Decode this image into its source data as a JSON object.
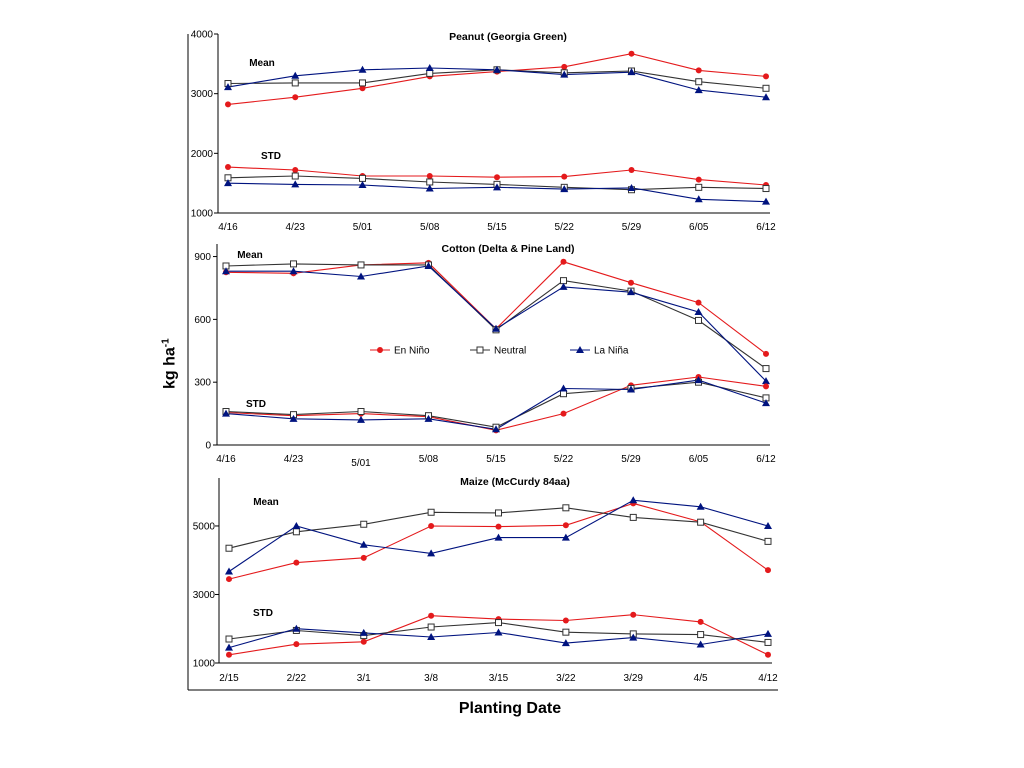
{
  "figure": {
    "ylabel": "kg ha",
    "ylabel_sup": "-1",
    "xlabel": "Planting Date"
  },
  "legend": [
    {
      "name": "En Niño",
      "color": "#e41a1c",
      "marker": "circle"
    },
    {
      "name": "Neutral",
      "color": "#333333",
      "marker": "square"
    },
    {
      "name": "La Niña",
      "color": "#00137f",
      "marker": "triangle"
    }
  ],
  "chart_data": [
    {
      "type": "line",
      "title": "Peanut (Georgia Green)",
      "categories": [
        "4/16",
        "4/23",
        "5/01",
        "5/08",
        "5/15",
        "5/22",
        "5/29",
        "6/05",
        "6/12"
      ],
      "ylim": [
        1000,
        4000
      ],
      "yticks": [
        "1000",
        "2000",
        "3000",
        "4000"
      ],
      "group_labels": [
        "Mean",
        "STD"
      ],
      "series": [
        {
          "name": "En Niño",
          "group": "Mean",
          "values": [
            2820,
            2940,
            3090,
            3290,
            3370,
            3450,
            3670,
            3390,
            3290
          ]
        },
        {
          "name": "Neutral",
          "group": "Mean",
          "values": [
            3170,
            3180,
            3180,
            3340,
            3400,
            3350,
            3380,
            3200,
            3090
          ]
        },
        {
          "name": "La Niña",
          "group": "Mean",
          "values": [
            3110,
            3300,
            3400,
            3430,
            3400,
            3320,
            3360,
            3060,
            2940
          ]
        },
        {
          "name": "En Niño",
          "group": "STD",
          "values": [
            1770,
            1720,
            1620,
            1620,
            1600,
            1610,
            1720,
            1560,
            1470
          ]
        },
        {
          "name": "Neutral",
          "group": "STD",
          "values": [
            1590,
            1620,
            1580,
            1520,
            1480,
            1430,
            1390,
            1430,
            1410
          ]
        },
        {
          "name": "La Niña",
          "group": "STD",
          "values": [
            1500,
            1480,
            1470,
            1410,
            1430,
            1400,
            1420,
            1230,
            1190
          ]
        }
      ]
    },
    {
      "type": "line",
      "title": "Cotton (Delta & Pine Land)",
      "categories": [
        "4/16",
        "4/23",
        "5/01",
        "5/08",
        "5/15",
        "5/22",
        "5/29",
        "6/05",
        "6/12"
      ],
      "ylim": [
        0,
        960
      ],
      "yticks": [
        "0",
        "300",
        "600",
        "900"
      ],
      "group_labels": [
        "Mean",
        "STD"
      ],
      "series": [
        {
          "name": "En Niño",
          "group": "Mean",
          "values": [
            825,
            820,
            860,
            870,
            555,
            875,
            775,
            680,
            435
          ]
        },
        {
          "name": "Neutral",
          "group": "Mean",
          "values": [
            855,
            865,
            860,
            860,
            550,
            785,
            735,
            595,
            365
          ]
        },
        {
          "name": "La Niña",
          "group": "Mean",
          "values": [
            830,
            830,
            805,
            855,
            555,
            755,
            730,
            635,
            305
          ]
        },
        {
          "name": "En Niño",
          "group": "STD",
          "values": [
            155,
            140,
            150,
            135,
            70,
            150,
            285,
            325,
            280
          ]
        },
        {
          "name": "Neutral",
          "group": "STD",
          "values": [
            160,
            145,
            160,
            140,
            85,
            245,
            270,
            300,
            225
          ]
        },
        {
          "name": "La Niña",
          "group": "STD",
          "values": [
            150,
            125,
            120,
            125,
            75,
            270,
            265,
            310,
            200
          ]
        }
      ]
    },
    {
      "type": "line",
      "title": "Maize (McCurdy 84aa)",
      "categories": [
        "2/15",
        "2/22",
        "3/1",
        "3/8",
        "3/15",
        "3/22",
        "3/29",
        "4/5",
        "4/12"
      ],
      "ylim": [
        1000,
        6400
      ],
      "yticks": [
        "1000",
        "3000",
        "5000"
      ],
      "group_labels": [
        "Mean",
        "STD"
      ],
      "series": [
        {
          "name": "En Niño",
          "group": "Mean",
          "values": [
            3450,
            3930,
            4070,
            5000,
            4980,
            5020,
            5660,
            5120,
            3710
          ]
        },
        {
          "name": "Neutral",
          "group": "Mean",
          "values": [
            4350,
            4830,
            5050,
            5400,
            5380,
            5530,
            5250,
            5110,
            4550
          ]
        },
        {
          "name": "La Niña",
          "group": "Mean",
          "values": [
            3670,
            5000,
            4450,
            4200,
            4660,
            4660,
            5750,
            5560,
            5000
          ]
        },
        {
          "name": "En Niño",
          "group": "STD",
          "values": [
            1240,
            1550,
            1620,
            2380,
            2280,
            2240,
            2410,
            2200,
            1240
          ]
        },
        {
          "name": "Neutral",
          "group": "STD",
          "values": [
            1700,
            1950,
            1800,
            2050,
            2180,
            1900,
            1850,
            1830,
            1600
          ]
        },
        {
          "name": "La Niña",
          "group": "STD",
          "values": [
            1450,
            2000,
            1880,
            1760,
            1890,
            1580,
            1740,
            1540,
            1850
          ]
        }
      ]
    }
  ]
}
